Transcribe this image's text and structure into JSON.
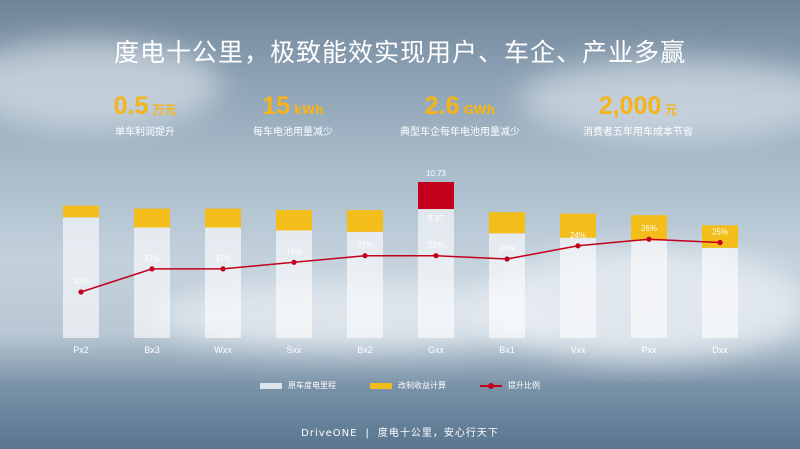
{
  "title": "度电十公里，极致能效实现用户、车企、产业多赢",
  "kpis": [
    {
      "value": "0.5",
      "unit": "万元",
      "desc": "单车利润提升"
    },
    {
      "value": "15",
      "unit": "kWh",
      "desc": "每车电池用量减少"
    },
    {
      "value": "2.6",
      "unit": "GWh",
      "desc": "典型车企每年电池用量减少"
    },
    {
      "value": "2,000",
      "unit": "元",
      "desc": "消费者五年用车成本节省"
    }
  ],
  "chart_data": {
    "type": "bar",
    "categories": [
      "Px2",
      "Bx3",
      "Wxx",
      "Sxx",
      "Bx2",
      "Gxx",
      "Bx1",
      "Vxx",
      "Pxx",
      "Dxx"
    ],
    "series": [
      {
        "name": "原车度电里程",
        "values": [
          8.3,
          7.6,
          7.6,
          7.4,
          7.3,
          8.87,
          7.2,
          6.9,
          6.7,
          6.2
        ],
        "color": "#ffffff"
      },
      {
        "name": "改制收益计算",
        "values": [
          0.8,
          1.3,
          1.3,
          1.4,
          1.5,
          1.86,
          1.45,
          1.65,
          1.75,
          1.55
        ],
        "color": "#f3bd1a",
        "highlight_color": "#c3001c"
      },
      {
        "name": "提升比例",
        "type": "line",
        "values": [
          10,
          17,
          17,
          19,
          21,
          21,
          20,
          24,
          26,
          25
        ],
        "labels": [
          "10%",
          "17%",
          "17%",
          "19%",
          "21%",
          "21%",
          "20%",
          "24%",
          "26%",
          "25%"
        ],
        "color": "#c3001c"
      }
    ],
    "bar_labels": {
      "Gxx": {
        "base": "8.87",
        "total": "10.73"
      }
    },
    "highlight_category": "Gxx",
    "bar_ylim": [
      0,
      10.73
    ],
    "line_ylim": [
      0,
      30
    ],
    "grid": false,
    "legend_position": "bottom"
  },
  "legend": [
    "原车度电里程",
    "改制收益计算",
    "提升比例"
  ],
  "footer": {
    "brand": "DriveONE",
    "separator": "|",
    "slogan": "度电十公里，安心行天下"
  }
}
